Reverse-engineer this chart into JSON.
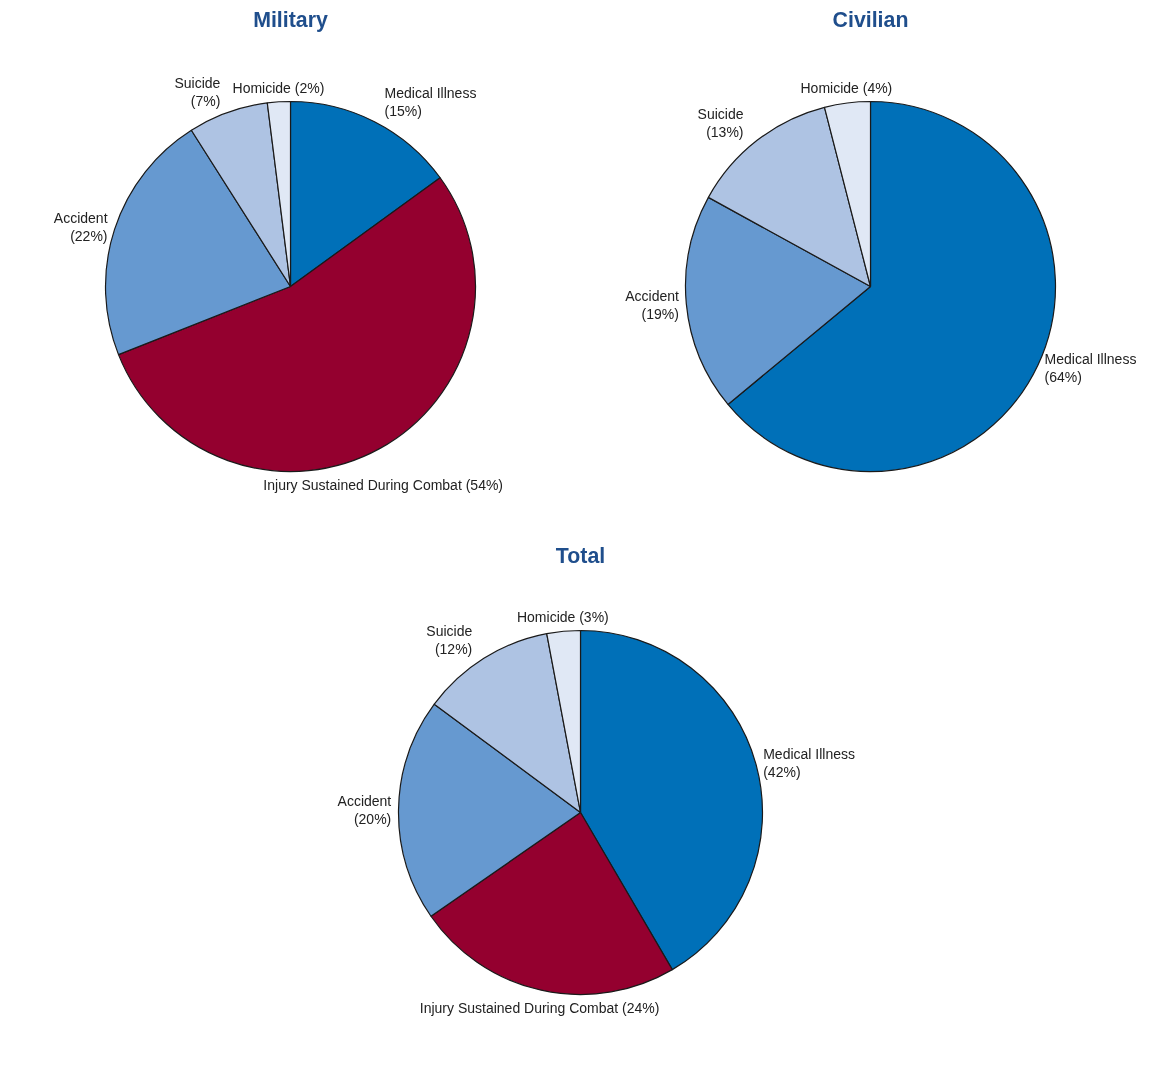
{
  "chart_data": [
    {
      "type": "pie",
      "title": "Military",
      "categories": [
        "Medical Illness",
        "Injury Sustained During Combat",
        "Accident",
        "Suicide",
        "Homicide"
      ],
      "values": [
        15,
        54,
        22,
        7,
        2
      ],
      "value_labels": [
        "(15%)",
        "(54%)",
        "(22%)",
        "(7%)",
        "(2%)"
      ],
      "colors": [
        "#0070b8",
        "#94002f",
        "#6699d0",
        "#aec3e3",
        "#e0e8f5"
      ],
      "legend": false
    },
    {
      "type": "pie",
      "title": "Civilian",
      "categories": [
        "Medical Illness",
        "Accident",
        "Suicide",
        "Homicide"
      ],
      "values": [
        64,
        19,
        13,
        4
      ],
      "value_labels": [
        "(64%)",
        "(19%)",
        "(13%)",
        "(4%)"
      ],
      "colors": [
        "#0070b8",
        "#6699d0",
        "#aec3e3",
        "#e0e8f5"
      ],
      "legend": false
    },
    {
      "type": "pie",
      "title": "Total",
      "categories": [
        "Medical Illness",
        "Injury Sustained During Combat",
        "Accident",
        "Suicide",
        "Homicide"
      ],
      "values": [
        42,
        24,
        20,
        12,
        3
      ],
      "value_labels": [
        "(42%)",
        "(24%)",
        "(20%)",
        "(12%)",
        "(3%)"
      ],
      "colors": [
        "#0070b8",
        "#94002f",
        "#6699d0",
        "#aec3e3",
        "#e0e8f5"
      ],
      "legend": false
    }
  ]
}
